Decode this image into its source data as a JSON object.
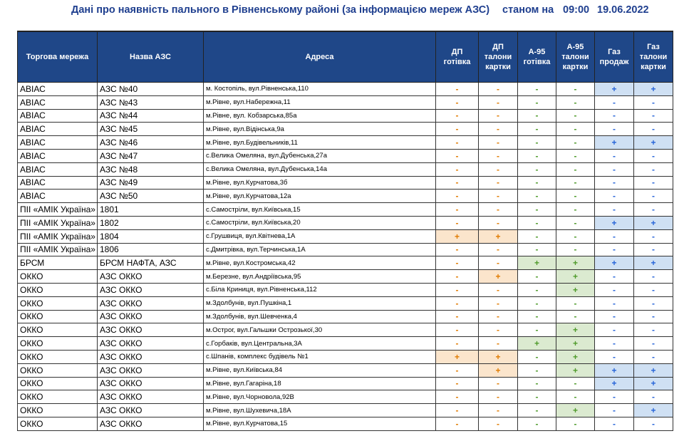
{
  "header": {
    "title": "Дані про наявність пального в Рівненському районі (за інформацією мереж АЗС)",
    "as_of_label": "станом на",
    "time": "09:00",
    "date": "19.06.2022"
  },
  "columns": [
    "Торгова мережа",
    "Назва АЗС",
    "Адреса",
    "ДП готівка",
    "ДП талони картки",
    "А-95 готівка",
    "А-95 талони картки",
    "Газ продаж",
    "Газ талони картки"
  ],
  "colors": {
    "header_bg": "#1f4788",
    "dp": "#e07b00",
    "a95": "#4e9a2a",
    "gas": "#2563d8"
  },
  "rows": [
    {
      "network": "АВІАС",
      "name": "АЗС №40",
      "address": "м. Костопіль, вул.Рівненська,110",
      "fuel": [
        "-",
        "-",
        "-",
        "-",
        "+",
        "+"
      ]
    },
    {
      "network": "АВІАС",
      "name": "АЗС №43",
      "address": "м.Рівне, вул.Набережна,11",
      "fuel": [
        "-",
        "-",
        "-",
        "-",
        "-",
        "-"
      ]
    },
    {
      "network": "АВІАС",
      "name": "АЗС №44",
      "address": "м.Рівне, вул. Кобзарська,85а",
      "fuel": [
        "-",
        "-",
        "-",
        "-",
        "-",
        "-"
      ]
    },
    {
      "network": "АВІАС",
      "name": "АЗС №45",
      "address": "м.Рівне, вул.Відінська,9а",
      "fuel": [
        "-",
        "-",
        "-",
        "-",
        "-",
        "-"
      ]
    },
    {
      "network": "АВІАС",
      "name": "АЗС №46",
      "address": "м.Рівне, вул.Будівельників,11",
      "fuel": [
        "-",
        "-",
        "-",
        "-",
        "+",
        "+"
      ]
    },
    {
      "network": "АВІАС",
      "name": "АЗС №47",
      "address": "с.Велика Омеляна, вул.Дубенська,27а",
      "fuel": [
        "-",
        "-",
        "-",
        "-",
        "-",
        "-"
      ]
    },
    {
      "network": "АВІАС",
      "name": "АЗС №48",
      "address": "с.Велика Омеляна, вул.Дубенська,14а",
      "fuel": [
        "-",
        "-",
        "-",
        "-",
        "-",
        "-"
      ]
    },
    {
      "network": "АВІАС",
      "name": "АЗС №49",
      "address": "м.Рівне, вул.Курчатова,3б",
      "fuel": [
        "-",
        "-",
        "-",
        "-",
        "-",
        "-"
      ]
    },
    {
      "network": "АВІАС",
      "name": "АЗС №50",
      "address": "м.Рівне, вул.Курчатова,12а",
      "fuel": [
        "-",
        "-",
        "-",
        "-",
        "-",
        "-"
      ]
    },
    {
      "network": "ПІІ «АМІК Україна»",
      "name": "1801",
      "address": "с.Самостріли, вул.Київська,15",
      "fuel": [
        "-",
        "-",
        "-",
        "-",
        "-",
        "-"
      ]
    },
    {
      "network": "ПІІ «АМІК Україна»",
      "name": "1802",
      "address": "с.Самостріли, вул.Київська,20",
      "fuel": [
        "-",
        "-",
        "-",
        "-",
        "+",
        "+"
      ]
    },
    {
      "network": "ПІІ «АМІК Україна»",
      "name": "1804",
      "address": "с.Грушвиця, вул.Квітнева,1А",
      "fuel": [
        "+",
        "+",
        "-",
        "-",
        "-",
        "-"
      ]
    },
    {
      "network": "ПІІ «АМІК Україна»",
      "name": "1806",
      "address": "с.Дмитрівка, вул.Терчинська,1А",
      "fuel": [
        "-",
        "-",
        "-",
        "-",
        "-",
        "-"
      ]
    },
    {
      "network": "БРСМ",
      "name": "БРСМ НАФТА, АЗС",
      "address": "м.Рівне, вул.Костромська,42",
      "fuel": [
        "-",
        "-",
        "+",
        "+",
        "+",
        "+"
      ]
    },
    {
      "network": "ОККО",
      "name": "АЗС ОККО",
      "address": "м.Березне, вул.Андріївська,95",
      "fuel": [
        "-",
        "+",
        "-",
        "+",
        "-",
        "-"
      ]
    },
    {
      "network": "ОККО",
      "name": "АЗС ОККО",
      "address": "с.Біла Криниця, вул.Рівненська,112",
      "fuel": [
        "-",
        "-",
        "-",
        "+",
        "-",
        "-"
      ]
    },
    {
      "network": "ОККО",
      "name": "АЗС ОККО",
      "address": "м.Здолбунів, вул.Пушкіна,1",
      "fuel": [
        "-",
        "-",
        "-",
        "-",
        "-",
        "-"
      ]
    },
    {
      "network": "ОККО",
      "name": "АЗС ОККО",
      "address": "м.Здолбунів, вул.Шевченка,4",
      "fuel": [
        "-",
        "-",
        "-",
        "-",
        "-",
        "-"
      ]
    },
    {
      "network": "ОККО",
      "name": "АЗС ОККО",
      "address": "м.Острог, вул.Гальшки Острозької,30",
      "fuel": [
        "-",
        "-",
        "-",
        "+",
        "-",
        "-"
      ]
    },
    {
      "network": "ОККО",
      "name": "АЗС ОККО",
      "address": "с.Горбаків, вул.Центральна,3А",
      "fuel": [
        "-",
        "-",
        "+",
        "+",
        "-",
        "-"
      ]
    },
    {
      "network": "ОККО",
      "name": "АЗС ОККО",
      "address": "с.Шпанів, комплекс будівель №1",
      "fuel": [
        "+",
        "+",
        "-",
        "+",
        "-",
        "-"
      ]
    },
    {
      "network": "ОККО",
      "name": "АЗС ОККО",
      "address": "м.Рівне, вул.Київська,84",
      "fuel": [
        "-",
        "+",
        "-",
        "+",
        "+",
        "+"
      ]
    },
    {
      "network": "ОККО",
      "name": "АЗС ОККО",
      "address": "м.Рівне, вул.Гагаріна,18",
      "fuel": [
        "-",
        "-",
        "-",
        "-",
        "+",
        "+"
      ]
    },
    {
      "network": "ОККО",
      "name": "АЗС ОККО",
      "address": "м.Рівне, вул.Чорновола,92В",
      "fuel": [
        "-",
        "-",
        "-",
        "-",
        "-",
        "-"
      ]
    },
    {
      "network": "ОККО",
      "name": "АЗС ОККО",
      "address": "м.Рівне, вул.Шухевича,18А",
      "fuel": [
        "-",
        "-",
        "-",
        "+",
        "-",
        "+"
      ]
    },
    {
      "network": "ОККО",
      "name": "АЗС ОККО",
      "address": "м.Рівне, вул.Курчатова,15",
      "fuel": [
        "-",
        "-",
        "-",
        "-",
        "-",
        "-"
      ]
    }
  ]
}
